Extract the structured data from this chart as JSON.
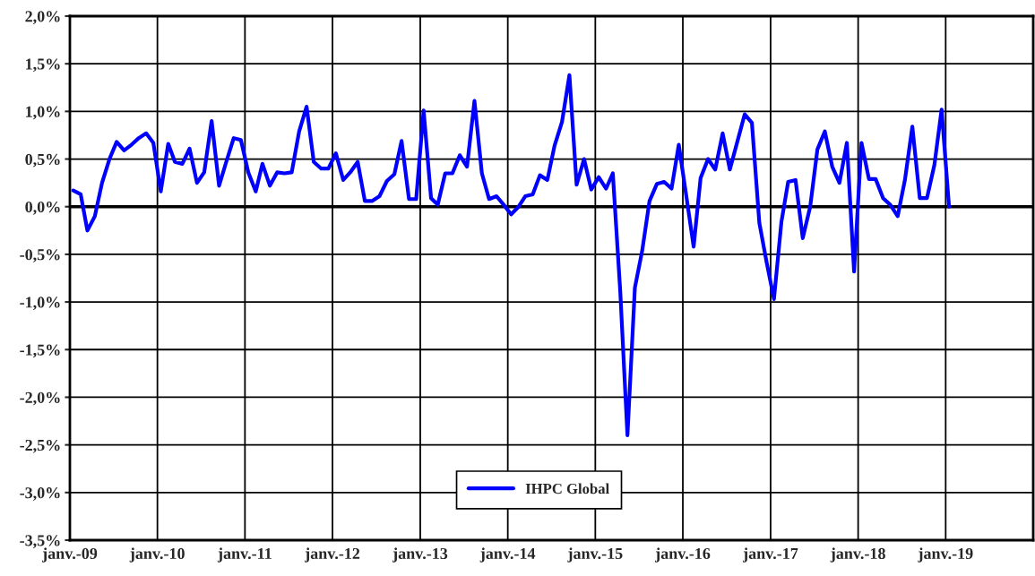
{
  "chart_data": {
    "type": "line",
    "x": [
      "2009-01-15",
      "2009-02-15",
      "2009-03-15",
      "2009-04-15",
      "2009-05-15",
      "2009-06-15",
      "2009-07-15",
      "2009-08-15",
      "2009-09-15",
      "2009-10-15",
      "2009-11-15",
      "2009-12-15",
      "2010-01-15",
      "2010-02-15",
      "2010-03-15",
      "2010-04-15",
      "2010-05-15",
      "2010-06-15",
      "2010-07-15",
      "2010-08-15",
      "2010-09-15",
      "2010-10-15",
      "2010-11-15",
      "2010-12-15",
      "2011-01-15",
      "2011-02-15",
      "2011-03-15",
      "2011-04-15",
      "2011-05-15",
      "2011-06-15",
      "2011-07-15",
      "2011-08-15",
      "2011-09-15",
      "2011-10-15",
      "2011-11-15",
      "2011-12-15",
      "2012-01-15",
      "2012-02-15",
      "2012-03-15",
      "2012-04-15",
      "2012-05-15",
      "2012-06-15",
      "2012-07-15",
      "2012-08-15",
      "2012-09-15",
      "2012-10-15",
      "2012-11-15",
      "2012-12-15",
      "2013-01-15",
      "2013-02-15",
      "2013-03-15",
      "2013-04-15",
      "2013-05-15",
      "2013-06-15",
      "2013-07-15",
      "2013-08-15",
      "2013-09-15",
      "2013-10-15",
      "2013-11-15",
      "2013-12-15",
      "2014-01-15",
      "2014-02-15",
      "2014-03-15",
      "2014-04-15",
      "2014-05-15",
      "2014-06-15",
      "2014-07-15",
      "2014-08-15",
      "2014-09-15",
      "2014-10-15",
      "2014-11-15",
      "2014-12-15",
      "2015-01-15",
      "2015-02-15",
      "2015-03-15",
      "2015-04-15",
      "2015-05-15",
      "2015-06-15",
      "2015-07-15",
      "2015-08-15",
      "2015-09-15",
      "2015-10-15",
      "2015-11-15",
      "2015-12-15",
      "2016-01-15",
      "2016-02-15",
      "2016-03-15",
      "2016-04-15",
      "2016-05-15",
      "2016-06-15",
      "2016-07-15",
      "2016-08-15",
      "2016-09-15",
      "2016-10-15",
      "2016-11-15",
      "2016-12-15",
      "2017-01-15",
      "2017-02-15",
      "2017-03-15",
      "2017-04-15",
      "2017-05-15",
      "2017-06-15",
      "2017-07-15",
      "2017-08-15",
      "2017-09-15",
      "2017-10-15",
      "2017-11-15",
      "2017-12-15",
      "2018-01-15",
      "2018-02-15",
      "2018-03-15",
      "2018-04-15",
      "2018-05-15",
      "2018-06-15",
      "2018-07-15",
      "2018-08-15",
      "2018-09-15",
      "2018-10-15",
      "2018-11-15",
      "2018-12-15",
      "2019-01-15"
    ],
    "series": [
      {
        "name": "IHPC Global",
        "color": "#0000ff",
        "values": [
          0.17,
          0.13,
          -0.25,
          -0.1,
          0.25,
          0.5,
          0.68,
          0.59,
          0.65,
          0.72,
          0.77,
          0.67,
          0.16,
          0.66,
          0.47,
          0.45,
          0.61,
          0.25,
          0.36,
          0.9,
          0.22,
          0.47,
          0.72,
          0.7,
          0.36,
          0.16,
          0.45,
          0.22,
          0.36,
          0.35,
          0.36,
          0.79,
          1.05,
          0.47,
          0.4,
          0.4,
          0.56,
          0.28,
          0.36,
          0.47,
          0.06,
          0.06,
          0.11,
          0.27,
          0.34,
          0.69,
          0.08,
          0.08,
          1.01,
          0.09,
          0.02,
          0.35,
          0.35,
          0.54,
          0.42,
          1.11,
          0.35,
          0.08,
          0.11,
          0.02,
          -0.08,
          0.0,
          0.11,
          0.13,
          0.33,
          0.28,
          0.64,
          0.89,
          1.38,
          0.23,
          0.5,
          0.18,
          0.31,
          0.19,
          0.35,
          -0.89,
          -2.4,
          -0.85,
          -0.47,
          0.06,
          0.24,
          0.26,
          0.19,
          0.65,
          0.12,
          -0.42,
          0.3,
          0.5,
          0.39,
          0.77,
          0.39,
          0.68,
          0.97,
          0.88,
          -0.17,
          -0.58,
          -0.97,
          -0.16,
          0.26,
          0.28,
          -0.33,
          0.0,
          0.6,
          0.79,
          0.42,
          0.25,
          0.67,
          -0.68,
          0.67,
          0.29,
          0.29,
          0.09,
          0.02,
          -0.1,
          0.28,
          0.84,
          0.09,
          0.09,
          0.44,
          1.02,
          0.0
        ]
      }
    ],
    "xlim": [
      "2009-01",
      "2020-01"
    ],
    "xticks": [
      {
        "value": "2009-01",
        "label": "janv.-09"
      },
      {
        "value": "2010-01",
        "label": "janv.-10"
      },
      {
        "value": "2011-01",
        "label": "janv.-11"
      },
      {
        "value": "2012-01",
        "label": "janv.-12"
      },
      {
        "value": "2013-01",
        "label": "janv.-13"
      },
      {
        "value": "2014-01",
        "label": "janv.-14"
      },
      {
        "value": "2015-01",
        "label": "janv.-15"
      },
      {
        "value": "2016-01",
        "label": "janv.-16"
      },
      {
        "value": "2017-01",
        "label": "janv.-17"
      },
      {
        "value": "2018-01",
        "label": "janv.-18"
      },
      {
        "value": "2019-01",
        "label": "janv.-19"
      }
    ],
    "ylim": [
      -3.5,
      2.0
    ],
    "yticks": [
      {
        "value": -3.5,
        "label": "-3,5%"
      },
      {
        "value": -3.0,
        "label": "-3,0%"
      },
      {
        "value": -2.5,
        "label": "-2,5%"
      },
      {
        "value": -2.0,
        "label": "-2,0%"
      },
      {
        "value": -1.5,
        "label": "-1,5%"
      },
      {
        "value": -1.0,
        "label": "-1,0%"
      },
      {
        "value": -0.5,
        "label": "-0,5%"
      },
      {
        "value": 0.0,
        "label": "0,0%"
      },
      {
        "value": 0.5,
        "label": "0,5%"
      },
      {
        "value": 1.0,
        "label": "1,0%"
      },
      {
        "value": 1.5,
        "label": "1,5%"
      },
      {
        "value": 2.0,
        "label": "2,0%"
      }
    ],
    "ref_lines": [
      {
        "axis": "y",
        "value": 0,
        "color": "#000000"
      }
    ],
    "grid": true,
    "legend": "bottom",
    "marker": "none",
    "line_style": "solid"
  }
}
